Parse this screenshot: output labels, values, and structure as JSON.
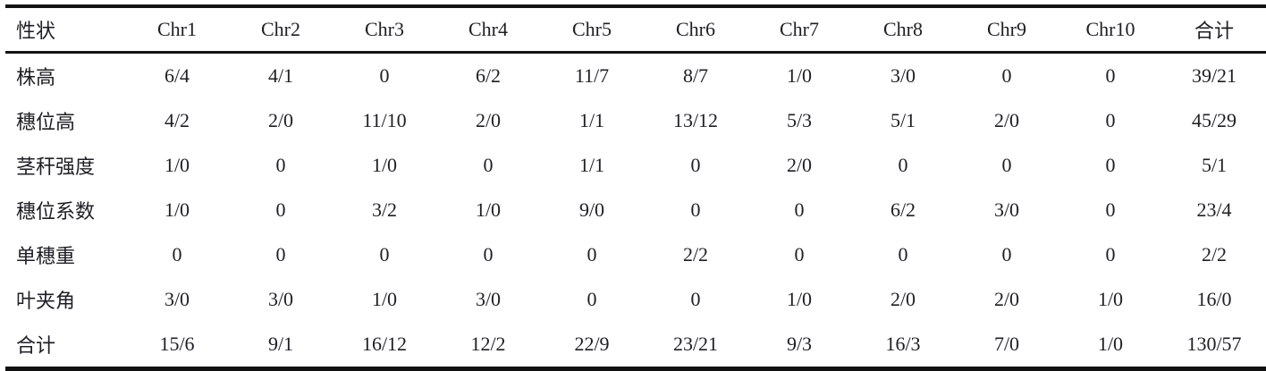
{
  "colors": {
    "background": "#ffffff",
    "text": "#1e1f24",
    "rule": "#141414"
  },
  "table": {
    "columns": [
      "性状",
      "Chr1",
      "Chr2",
      "Chr3",
      "Chr4",
      "Chr5",
      "Chr6",
      "Chr7",
      "Chr8",
      "Chr9",
      "Chr10",
      "合计"
    ],
    "rows": [
      {
        "label": "株高",
        "values": [
          "6/4",
          "4/1",
          "0",
          "6/2",
          "11/7",
          "8/7",
          "1/0",
          "3/0",
          "0",
          "0",
          "39/21"
        ]
      },
      {
        "label": "穗位高",
        "values": [
          "4/2",
          "2/0",
          "11/10",
          "2/0",
          "1/1",
          "13/12",
          "5/3",
          "5/1",
          "2/0",
          "0",
          "45/29"
        ]
      },
      {
        "label": "茎秆强度",
        "values": [
          "1/0",
          "0",
          "1/0",
          "0",
          "1/1",
          "0",
          "2/0",
          "0",
          "0",
          "0",
          "5/1"
        ]
      },
      {
        "label": "穗位系数",
        "values": [
          "1/0",
          "0",
          "3/2",
          "1/0",
          "9/0",
          "0",
          "0",
          "6/2",
          "3/0",
          "0",
          "23/4"
        ]
      },
      {
        "label": "单穗重",
        "values": [
          "0",
          "0",
          "0",
          "0",
          "0",
          "2/2",
          "0",
          "0",
          "0",
          "0",
          "2/2"
        ]
      },
      {
        "label": "叶夹角",
        "values": [
          "3/0",
          "3/0",
          "1/0",
          "3/0",
          "0",
          "0",
          "1/0",
          "2/0",
          "2/0",
          "1/0",
          "16/0"
        ]
      },
      {
        "label": "合计",
        "values": [
          "15/6",
          "9/1",
          "16/12",
          "12/2",
          "22/9",
          "23/21",
          "9/3",
          "16/3",
          "7/0",
          "1/0",
          "130/57"
        ]
      }
    ]
  },
  "chart_data": {
    "type": "table",
    "columns": [
      "性状",
      "Chr1",
      "Chr2",
      "Chr3",
      "Chr4",
      "Chr5",
      "Chr6",
      "Chr7",
      "Chr8",
      "Chr9",
      "Chr10",
      "合计"
    ],
    "rows": [
      [
        "株高",
        "6/4",
        "4/1",
        "0",
        "6/2",
        "11/7",
        "8/7",
        "1/0",
        "3/0",
        "0",
        "0",
        "39/21"
      ],
      [
        "穗位高",
        "4/2",
        "2/0",
        "11/10",
        "2/0",
        "1/1",
        "13/12",
        "5/3",
        "5/1",
        "2/0",
        "0",
        "45/29"
      ],
      [
        "茎秆强度",
        "1/0",
        "0",
        "1/0",
        "0",
        "1/1",
        "0",
        "2/0",
        "0",
        "0",
        "0",
        "5/1"
      ],
      [
        "穗位系数",
        "1/0",
        "0",
        "3/2",
        "1/0",
        "9/0",
        "0",
        "0",
        "6/2",
        "3/0",
        "0",
        "23/4"
      ],
      [
        "单穗重",
        "0",
        "0",
        "0",
        "0",
        "0",
        "2/2",
        "0",
        "0",
        "0",
        "0",
        "2/2"
      ],
      [
        "叶夹角",
        "3/0",
        "3/0",
        "1/0",
        "3/0",
        "0",
        "0",
        "1/0",
        "2/0",
        "2/0",
        "1/0",
        "16/0"
      ],
      [
        "合计",
        "15/6",
        "9/1",
        "16/12",
        "12/2",
        "22/9",
        "23/21",
        "9/3",
        "16/3",
        "7/0",
        "1/0",
        "130/57"
      ]
    ]
  }
}
